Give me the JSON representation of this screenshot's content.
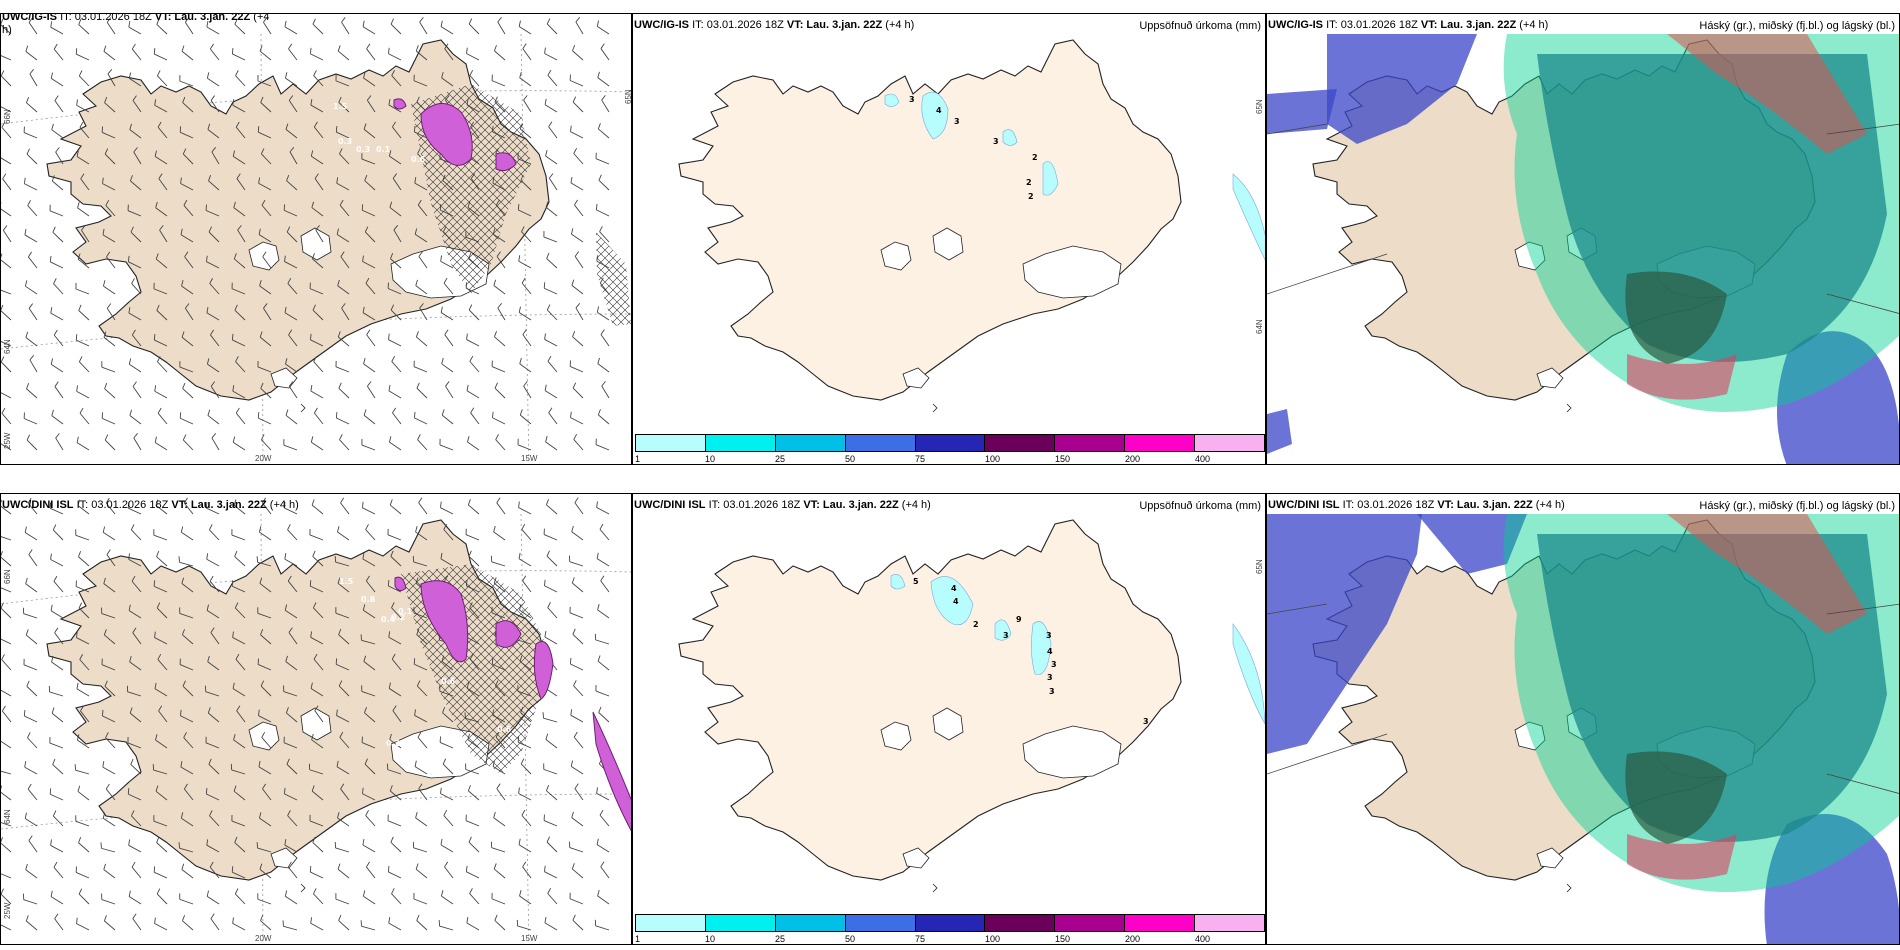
{
  "panels": [
    {
      "id": "wind-igis",
      "model": "UWC/IG-IS",
      "it": "IT: 03.01.2026 18Z",
      "vt": "VT: Lau. 3.jan. 22Z",
      "lead": "(+4",
      "lead2": "h)",
      "right": ""
    },
    {
      "id": "precip-igis",
      "model": "UWC/IG-IS",
      "it": "IT: 03.01.2026 18Z",
      "vt": "VT: Lau. 3.jan. 22Z",
      "lead": "(+4 h)",
      "right": "Uppsöfnuð úrkoma (mm)"
    },
    {
      "id": "cloud-igis",
      "model": "UWC/IG-IS",
      "it": "IT: 03.01.2026 18Z",
      "vt": "VT: Lau. 3.jan. 22Z",
      "lead": "(+4 h)",
      "right": "Háský (gr.), miðský (fj.bl.) og lágský (bl.)"
    },
    {
      "id": "wind-dini",
      "model": "UWC/DINI ISL",
      "it": "IT: 03.01.2026 18Z",
      "vt": "VT: Lau. 3.jan. 22Z",
      "lead": "(+4 h)",
      "right": ""
    },
    {
      "id": "precip-dini",
      "model": "UWC/DINI ISL",
      "it": "IT: 03.01.2026 18Z",
      "vt": "VT: Lau. 3.jan. 22Z",
      "lead": "(+4 h)",
      "right": "Uppsöfnuð úrkoma (mm)"
    },
    {
      "id": "cloud-dini",
      "model": "UWC/DINI ISL",
      "it": "IT: 03.01.2026 18Z",
      "vt": "VT: Lau. 3.jan. 22Z",
      "lead": "(+4 h)",
      "right": "Háský (gr.), miðský (fj.bl.) og lágský (bl.)"
    }
  ],
  "graticule": {
    "lat66": "66N",
    "lat64": "64N",
    "lon25": "25W",
    "lon20": "20W",
    "lon15": "15W",
    "lat65": "65N"
  },
  "colorbar": {
    "colors": [
      "#b7fdfd",
      "#00f0f0",
      "#00c0e8",
      "#3c6ee6",
      "#2626b4",
      "#6a005a",
      "#aa0090",
      "#ff00c8",
      "#f8b0f0"
    ],
    "ticks": [
      "1",
      "10",
      "25",
      "50",
      "75",
      "100",
      "150",
      "200",
      "400"
    ]
  },
  "precip_labels_igis": [
    "3",
    "4",
    "3",
    "3",
    "2",
    "2",
    "2"
  ],
  "precip_labels_dini": [
    "5",
    "4",
    "4",
    "2",
    "9",
    "3",
    "3",
    "4",
    "3",
    "3",
    "3",
    "3"
  ],
  "wind_labels_igis": [
    "1.5",
    "0.3",
    "0.3",
    "0.1",
    "0.6"
  ],
  "wind_labels_dini": [
    "1.5",
    "0.8",
    "0.4",
    "0.2",
    "0.1",
    "0.6",
    "0.2",
    "0.6"
  ],
  "colors": {
    "land": "#ecdcc8",
    "land_precip": "#fdf1e3",
    "high_cloud": "#1a8a8a",
    "mid_cloud": "#3a46c8",
    "low_cloud": "#00d090"
  }
}
